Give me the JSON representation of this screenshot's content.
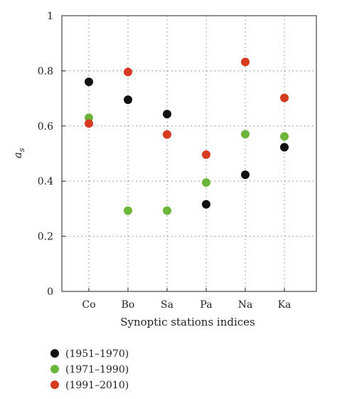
{
  "chart_data": {
    "type": "scatter",
    "categories": [
      "Co",
      "Bo",
      "Sa",
      "Pa",
      "Na",
      "Ka"
    ],
    "xlabel": "Synoptic stations indices",
    "ylabel_main": "a",
    "ylabel_sub": "s",
    "ylim": [
      0,
      1
    ],
    "yticks": [
      "0",
      "0.2",
      "0.4",
      "0.6",
      "0.8",
      "1"
    ],
    "ytick_values": [
      0,
      0.2,
      0.4,
      0.6,
      0.8,
      1
    ],
    "grid": true,
    "legend_position": "bottom-left",
    "series": [
      {
        "name": "(1951–1970)",
        "color": "#111111",
        "values": [
          0.76,
          0.695,
          0.643,
          0.316,
          0.423,
          0.523
        ]
      },
      {
        "name": "(1971–1990)",
        "color": "#6ab53a",
        "values": [
          0.63,
          0.293,
          0.293,
          0.395,
          0.57,
          0.562
        ]
      },
      {
        "name": "(1991–2010)",
        "color": "#d63a1f",
        "values": [
          0.609,
          0.796,
          0.569,
          0.496,
          0.832,
          0.702
        ]
      }
    ]
  }
}
